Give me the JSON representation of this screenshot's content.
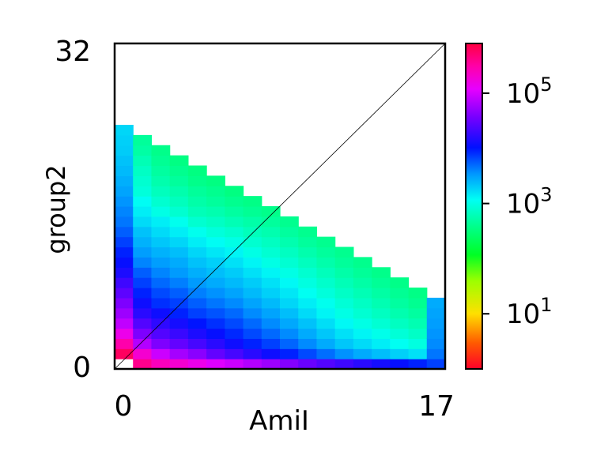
{
  "chart_data": {
    "type": "heatmap",
    "xlabel": "AmiI",
    "ylabel": "group2",
    "x_ticks": [
      "0",
      "17"
    ],
    "y_ticks": [
      "0",
      "32"
    ],
    "xlim": [
      0,
      17
    ],
    "ylim": [
      0,
      32
    ],
    "colormap": "gist_rainbow (log scale)",
    "colorbar": {
      "scale": "log",
      "ticks": [
        {
          "value": 10,
          "label_base": "10",
          "label_exp": "1"
        },
        {
          "value": 1000,
          "label_base": "10",
          "label_exp": "3"
        },
        {
          "value": 100000,
          "label_base": "10",
          "label_exp": "5"
        }
      ],
      "range": [
        1,
        800000
      ]
    },
    "diagonal_line": true,
    "columns": [
      {
        "x": 0,
        "top": 24,
        "values": [
          0,
          600000,
          300000,
          150000,
          80000,
          55000,
          40000,
          28000,
          20000,
          14000,
          11000,
          9000,
          7000,
          5500,
          4500,
          4000,
          3500,
          3000,
          2700,
          2400,
          2200,
          2000,
          1900,
          1800
        ]
      },
      {
        "x": 1,
        "top": 23,
        "values": [
          400000,
          200000,
          70000,
          40000,
          25000,
          16000,
          12000,
          9000,
          7000,
          5500,
          4000,
          3200,
          2600,
          2200,
          1700,
          1400,
          1200,
          900,
          800,
          700,
          600,
          500,
          450
        ]
      },
      {
        "x": 2,
        "top": 22,
        "values": [
          250000,
          90000,
          40000,
          25000,
          17000,
          12000,
          8000,
          6500,
          5000,
          4000,
          3200,
          2600,
          2100,
          1700,
          1400,
          1000,
          800,
          650,
          550,
          480,
          420,
          380
        ]
      },
      {
        "x": 3,
        "top": 21,
        "values": [
          200000,
          60000,
          30000,
          19000,
          13000,
          9000,
          7000,
          5500,
          4200,
          3300,
          2800,
          2300,
          1800,
          1400,
          1100,
          800,
          650,
          550,
          460,
          400,
          350
        ]
      },
      {
        "x": 4,
        "top": 20,
        "values": [
          150000,
          45000,
          22000,
          14000,
          10000,
          7000,
          5500,
          4200,
          3300,
          2700,
          2200,
          1800,
          1400,
          1100,
          800,
          620,
          520,
          450,
          380,
          340
        ]
      },
      {
        "x": 5,
        "top": 19,
        "values": [
          110000,
          30000,
          16000,
          11000,
          8000,
          6000,
          4500,
          3600,
          2800,
          2300,
          1900,
          1500,
          1200,
          900,
          700,
          560,
          460,
          400,
          340
        ]
      },
      {
        "x": 6,
        "top": 18,
        "values": [
          90000,
          22000,
          12000,
          8500,
          6500,
          5000,
          3800,
          3000,
          2400,
          2000,
          1600,
          1300,
          1000,
          780,
          600,
          480,
          400,
          340
        ]
      },
      {
        "x": 7,
        "top": 17,
        "values": [
          70000,
          16000,
          9000,
          6500,
          5000,
          3800,
          3000,
          2400,
          2000,
          1600,
          1300,
          1000,
          800,
          640,
          520,
          420,
          360
        ]
      },
      {
        "x": 8,
        "top": 16,
        "values": [
          55000,
          12000,
          7000,
          5000,
          3800,
          3000,
          2400,
          1900,
          1600,
          1300,
          1000,
          820,
          680,
          560,
          460,
          380
        ]
      },
      {
        "x": 9,
        "top": 15,
        "values": [
          42000,
          9000,
          5200,
          3800,
          2900,
          2300,
          1800,
          1500,
          1250,
          1000,
          820,
          680,
          560,
          470,
          400
        ]
      },
      {
        "x": 10,
        "top": 14,
        "values": [
          32000,
          6500,
          3800,
          2800,
          2200,
          1700,
          1400,
          1150,
          950,
          800,
          660,
          550,
          460,
          400
        ]
      },
      {
        "x": 11,
        "top": 13,
        "values": [
          25000,
          4800,
          2800,
          2100,
          1650,
          1300,
          1100,
          900,
          760,
          640,
          540,
          460,
          400
        ]
      },
      {
        "x": 12,
        "top": 12,
        "values": [
          20000,
          3600,
          2100,
          1600,
          1250,
          1000,
          850,
          720,
          610,
          520,
          450,
          400
        ]
      },
      {
        "x": 13,
        "top": 11,
        "values": [
          16000,
          2800,
          1700,
          1300,
          1000,
          820,
          700,
          600,
          510,
          440,
          390
        ]
      },
      {
        "x": 14,
        "top": 10,
        "values": [
          13000,
          2300,
          1400,
          1050,
          830,
          680,
          580,
          500,
          430,
          380
        ]
      },
      {
        "x": 15,
        "top": 9,
        "values": [
          11000,
          1900,
          1150,
          860,
          680,
          560,
          480,
          420,
          370
        ]
      },
      {
        "x": 16,
        "top": 8,
        "values": [
          9000,
          1600,
          950,
          720,
          580,
          480,
          410,
          360
        ]
      },
      {
        "x": 17,
        "top": 7,
        "values": [
          7000,
          4500,
          3800,
          3500,
          3200,
          3000,
          2800
        ]
      }
    ]
  }
}
